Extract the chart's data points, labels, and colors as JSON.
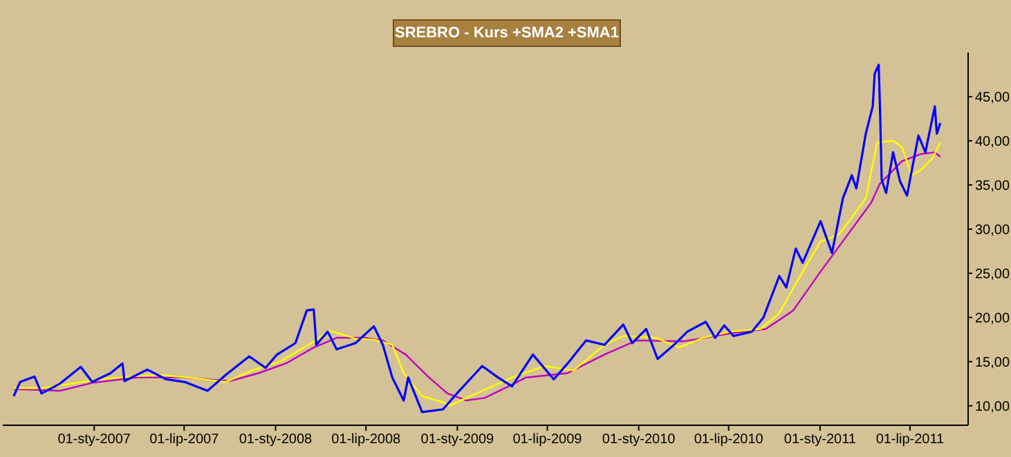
{
  "chart_data": {
    "type": "line",
    "title": "SREBRO - Kurs +SMA2 +SMA1",
    "xlim": [
      "2006-07-01",
      "2011-10-26"
    ],
    "xticks": [
      {
        "value": "2007-01-01",
        "label": "01-sty-2007"
      },
      {
        "value": "2007-07-01",
        "label": "01-lip-2007"
      },
      {
        "value": "2008-01-01",
        "label": "01-sty-2008"
      },
      {
        "value": "2008-07-01",
        "label": "01-lip-2008"
      },
      {
        "value": "2009-01-01",
        "label": "01-sty-2009"
      },
      {
        "value": "2009-07-01",
        "label": "01-lip-2009"
      },
      {
        "value": "2010-01-01",
        "label": "01-sty-2010"
      },
      {
        "value": "2010-07-01",
        "label": "01-lip-2010"
      },
      {
        "value": "2011-01-01",
        "label": "01-sty-2011"
      },
      {
        "value": "2011-07-01",
        "label": "01-lip-2011"
      }
    ],
    "ylim": [
      7.8,
      50
    ],
    "yticks": [
      {
        "value": 10,
        "label": "10,00"
      },
      {
        "value": 15,
        "label": "15,00"
      },
      {
        "value": 20,
        "label": "20,00"
      },
      {
        "value": 25,
        "label": "25,00"
      },
      {
        "value": 30,
        "label": "30,00"
      },
      {
        "value": 35,
        "label": "35,00"
      },
      {
        "value": 40,
        "label": "40,00"
      },
      {
        "value": 45,
        "label": "45,00"
      }
    ],
    "grid": false,
    "series": [
      {
        "color": "#c000c0",
        "x": [
          "2006-07-23",
          "2006-10-24",
          "2006-12-28",
          "2007-03-28",
          "2007-07-02",
          "2007-08-17",
          "2007-10-01",
          "2007-11-28",
          "2008-01-22",
          "2008-03-18",
          "2008-05-03",
          "2008-06-29",
          "2008-08-04",
          "2008-09-19",
          "2008-11-05",
          "2008-12-12",
          "2009-01-19",
          "2009-02-25",
          "2009-04-21",
          "2009-05-19",
          "2009-08-11",
          "2009-10-24",
          "2009-12-28",
          "2010-04-02",
          "2010-07-05",
          "2010-09-14",
          "2010-11-08",
          "2011-01-02",
          "2011-02-26",
          "2011-04-14",
          "2011-05-01",
          "2011-06-15",
          "2011-07-23",
          "2011-08-20",
          "2011-08-31"
        ],
        "values": [
          11.9,
          11.7,
          12.6,
          13.2,
          13.2,
          13.0,
          12.8,
          13.7,
          14.8,
          16.6,
          17.7,
          17.7,
          17.4,
          15.8,
          13.2,
          11.4,
          10.6,
          10.9,
          12.4,
          13.2,
          13.7,
          15.8,
          17.4,
          17.3,
          18.2,
          18.7,
          20.8,
          25.2,
          29.4,
          33.0,
          35.1,
          37.7,
          38.5,
          38.7,
          38.2
        ]
      },
      {
        "color": "#ffff00",
        "x": [
          "2006-07-23",
          "2006-09-17",
          "2006-11-15",
          "2007-01-10",
          "2007-03-10",
          "2007-05-10",
          "2007-07-10",
          "2007-09-23",
          "2007-11-15",
          "2008-01-10",
          "2008-03-10",
          "2008-04-20",
          "2008-06-10",
          "2008-07-17",
          "2008-08-23",
          "2008-09-15",
          "2008-10-22",
          "2008-12-03",
          "2008-12-15",
          "2009-02-20",
          "2009-04-21",
          "2009-06-25",
          "2009-08-23",
          "2009-10-24",
          "2009-12-01",
          "2010-02-04",
          "2010-03-24",
          "2010-05-10",
          "2010-07-05",
          "2010-09-04",
          "2010-10-11",
          "2010-11-27",
          "2011-01-02",
          "2011-02-08",
          "2011-03-15",
          "2011-04-03",
          "2011-04-26",
          "2011-05-28",
          "2011-06-15",
          "2011-07-04",
          "2011-07-23",
          "2011-08-15",
          "2011-08-31"
        ],
        "values": [
          12.0,
          12.0,
          12.5,
          13.0,
          13.3,
          13.5,
          13.2,
          12.7,
          14.0,
          15.0,
          17.0,
          18.5,
          17.6,
          17.5,
          16.9,
          13.7,
          11.1,
          10.4,
          10.0,
          11.7,
          13.2,
          14.5,
          14.0,
          16.9,
          17.9,
          17.7,
          16.6,
          17.7,
          18.4,
          18.7,
          20.5,
          25.2,
          28.6,
          29.4,
          32.0,
          33.5,
          39.8,
          40.0,
          39.3,
          36.1,
          36.7,
          38.0,
          39.8
        ]
      },
      {
        "color": "#0000ff",
        "x": [
          "2006-07-23",
          "2006-08-05",
          "2006-09-03",
          "2006-09-17",
          "2006-10-24",
          "2006-12-05",
          "2006-12-28",
          "2007-02-03",
          "2007-02-27",
          "2007-03-03",
          "2007-04-18",
          "2007-05-26",
          "2007-07-02",
          "2007-08-17",
          "2007-09-23",
          "2007-11-09",
          "2007-12-12",
          "2008-01-04",
          "2008-02-10",
          "2008-03-04",
          "2008-03-18",
          "2008-03-23",
          "2008-04-15",
          "2008-05-03",
          "2008-06-10",
          "2008-07-17",
          "2008-08-04",
          "2008-08-23",
          "2008-09-15",
          "2008-09-24",
          "2008-10-22",
          "2008-12-03",
          "2008-12-31",
          "2009-02-20",
          "2009-03-24",
          "2009-04-21",
          "2009-06-02",
          "2009-07-14",
          "2009-08-11",
          "2009-09-17",
          "2009-10-24",
          "2009-12-01",
          "2009-12-19",
          "2010-01-16",
          "2010-02-08",
          "2010-03-13",
          "2010-04-09",
          "2010-05-16",
          "2010-06-04",
          "2010-06-22",
          "2010-07-11",
          "2010-08-17",
          "2010-09-09",
          "2010-10-11",
          "2010-10-25",
          "2010-11-13",
          "2010-11-27",
          "2011-01-02",
          "2011-01-25",
          "2011-02-16",
          "2011-03-06",
          "2011-03-15",
          "2011-04-03",
          "2011-04-17",
          "2011-04-21",
          "2011-04-29",
          "2011-05-02",
          "2011-05-05",
          "2011-05-14",
          "2011-05-28",
          "2011-06-11",
          "2011-06-25",
          "2011-07-18",
          "2011-08-01",
          "2011-08-20",
          "2011-08-24",
          "2011-08-31"
        ],
        "values": [
          11.1,
          12.7,
          13.3,
          11.4,
          12.5,
          14.4,
          12.7,
          13.7,
          14.8,
          12.8,
          14.1,
          13.0,
          12.7,
          11.7,
          13.5,
          15.6,
          14.3,
          15.8,
          17.1,
          20.8,
          20.9,
          16.9,
          18.4,
          16.4,
          17.1,
          19.0,
          16.9,
          13.2,
          10.6,
          13.2,
          9.3,
          9.6,
          11.4,
          14.5,
          13.2,
          12.2,
          15.8,
          13.0,
          14.8,
          17.4,
          16.9,
          19.2,
          17.1,
          18.7,
          15.3,
          16.9,
          18.4,
          19.5,
          17.7,
          19.1,
          17.9,
          18.4,
          20.0,
          24.7,
          23.4,
          27.8,
          26.2,
          30.9,
          27.3,
          33.5,
          36.1,
          34.6,
          40.8,
          43.9,
          47.6,
          48.6,
          42.9,
          35.6,
          34.1,
          38.7,
          35.4,
          33.8,
          40.6,
          38.7,
          43.9,
          40.8,
          42.0
        ]
      }
    ]
  }
}
